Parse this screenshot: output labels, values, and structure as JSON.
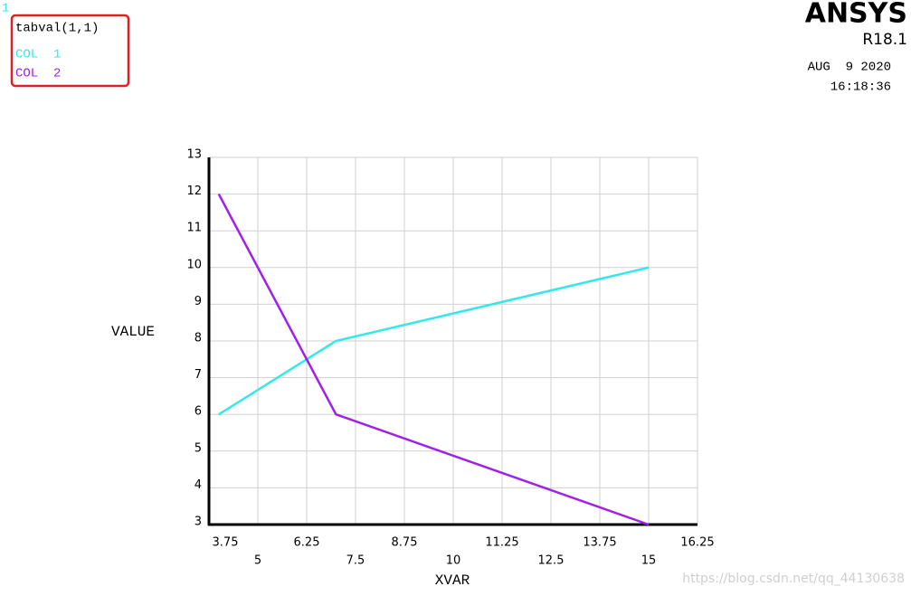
{
  "chart_data": {
    "type": "line",
    "window_label": "1",
    "legend_title": "tabval(1,1)",
    "brand": "ANSYS",
    "version": "R18.1",
    "date": "AUG  9 2020",
    "time": "16:18:36",
    "y_label": "VALUE",
    "x_label": "XVAR",
    "watermark": "https://blog.csdn.net/qq_44130638",
    "x": [
      4,
      7,
      15
    ],
    "series": [
      {
        "name": "COL  1",
        "color": "#33e8ea",
        "values": [
          6,
          8,
          10
        ]
      },
      {
        "name": "COL  2",
        "color": "#a020e8",
        "values": [
          12,
          6,
          3
        ]
      }
    ],
    "xlim": [
      3.75,
      16.25
    ],
    "xticks": [
      3.75,
      5,
      6.25,
      7.5,
      8.75,
      10,
      11.25,
      12.5,
      13.75,
      15,
      16.25
    ],
    "ylim": [
      3,
      13
    ],
    "yticks": [
      3,
      4,
      5,
      6,
      7,
      8,
      9,
      10,
      11,
      12,
      13
    ],
    "grid": true
  }
}
